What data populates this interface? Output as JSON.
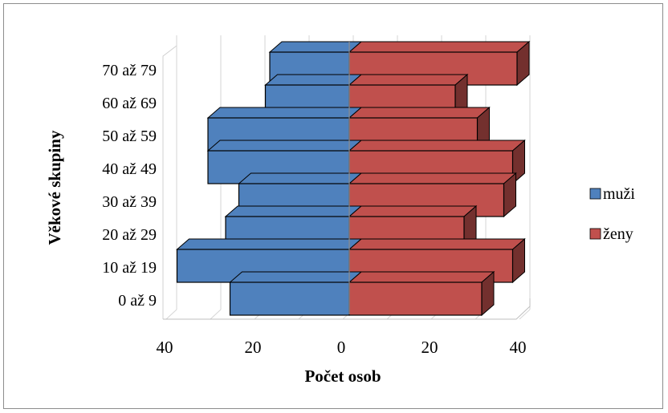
{
  "chart_data": {
    "type": "bar",
    "orientation": "horizontal-population-pyramid-3d",
    "categories": [
      "0 až 9",
      "10 až 19",
      "20 až 29",
      "30 až 39",
      "40 až 49",
      "50 až 59",
      "60 až 69",
      "70 až 79"
    ],
    "series": [
      {
        "name": "muži",
        "values": [
          27,
          39,
          28,
          25,
          32,
          32,
          19,
          18
        ],
        "color": "#4f81bd",
        "side": "left"
      },
      {
        "name": "ženy",
        "values": [
          30,
          37,
          26,
          35,
          37,
          29,
          24,
          38
        ],
        "color": "#c0504d",
        "side": "right"
      }
    ],
    "xlabel": "Počet osob",
    "ylabel": "Věkové skupiny",
    "xticks": [
      "40",
      "20",
      "0",
      "20",
      "40"
    ],
    "xlim": [
      -40,
      40
    ],
    "legend": "right",
    "grid": true
  }
}
